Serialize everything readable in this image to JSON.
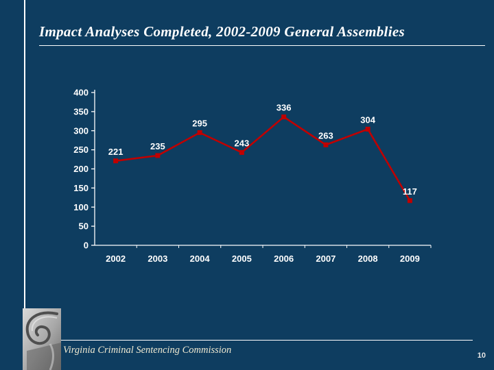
{
  "slide": {
    "title": "Impact Analyses Completed, 2002-2009 General Assemblies",
    "footer": "Virginia Criminal Sentencing Commission",
    "page_number": "10"
  },
  "chart_data": {
    "type": "line",
    "title": "",
    "categories": [
      "2002",
      "2003",
      "2004",
      "2005",
      "2006",
      "2007",
      "2008",
      "2009"
    ],
    "values": [
      221,
      235,
      295,
      243,
      336,
      263,
      304,
      117
    ],
    "xlabel": "",
    "ylabel": "",
    "ylim": [
      0,
      400
    ],
    "yticks": [
      0,
      50,
      100,
      150,
      200,
      250,
      300,
      350,
      400
    ],
    "grid": false,
    "legend": "none",
    "marker": "square",
    "line_color": "#C00000",
    "label_color": "#FFFFFF",
    "axis_color": "#FFFFFF"
  },
  "decor": {
    "corner_image": "carved-stone-volute"
  },
  "colors": {
    "background": "#0E3D60",
    "title_text": "#FFFFFF",
    "footer_text": "#F0EAD2"
  }
}
